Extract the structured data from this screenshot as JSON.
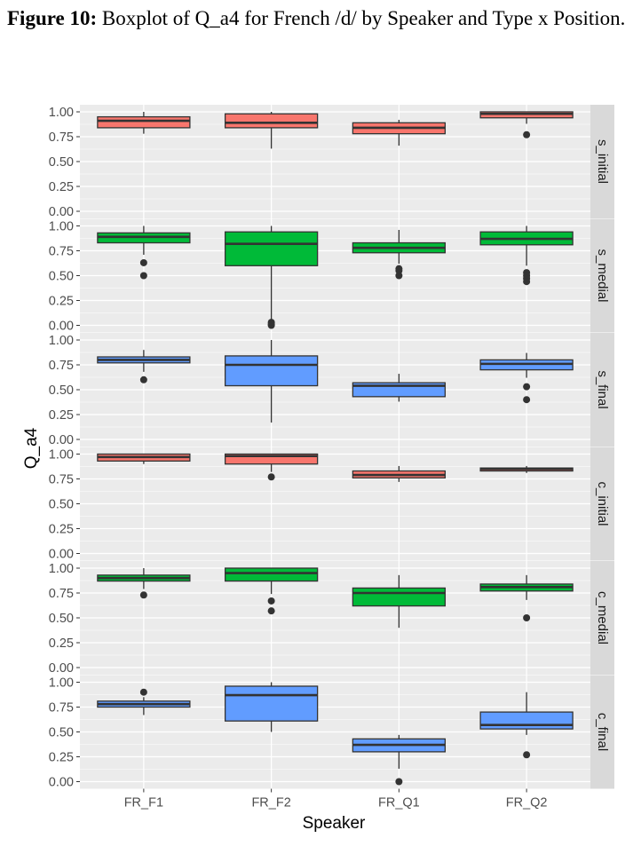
{
  "caption": {
    "label": "Figure 10:",
    "text": " Boxplot of Q_a4 for French /d/ by Speaker and Type x Position."
  },
  "colors": {
    "red": "#F8766D",
    "green": "#00BA38",
    "blue": "#619CFF",
    "panel_bg": "#EBEBEB",
    "strip_bg": "#D9D9D9",
    "grid": "#FFFFFF",
    "outline": "#333333"
  },
  "chart_data": {
    "type": "boxplot",
    "xlabel": "Speaker",
    "ylabel": "Q_a4",
    "categories": [
      "FR_F1",
      "FR_F2",
      "FR_Q1",
      "FR_Q2"
    ],
    "yticks": [
      "0.00",
      "0.25",
      "0.50",
      "0.75",
      "1.00"
    ],
    "ylim": [
      0,
      1
    ],
    "grid": true,
    "facets": [
      {
        "strip": "s_initial",
        "fill": "red",
        "boxes": [
          {
            "min": 0.78,
            "q1": 0.84,
            "median": 0.91,
            "q3": 0.95,
            "max": 1.0,
            "outliers": []
          },
          {
            "min": 0.63,
            "q1": 0.84,
            "median": 0.89,
            "q3": 0.98,
            "max": 1.0,
            "outliers": []
          },
          {
            "min": 0.66,
            "q1": 0.78,
            "median": 0.84,
            "q3": 0.89,
            "max": 0.92,
            "outliers": []
          },
          {
            "min": 0.88,
            "q1": 0.94,
            "median": 0.98,
            "q3": 1.0,
            "max": 1.0,
            "outliers": [
              0.77
            ]
          }
        ]
      },
      {
        "strip": "s_medial",
        "fill": "green",
        "boxes": [
          {
            "min": 0.71,
            "q1": 0.83,
            "median": 0.89,
            "q3": 0.93,
            "max": 1.0,
            "outliers": [
              0.63,
              0.5
            ]
          },
          {
            "min": 0.06,
            "q1": 0.6,
            "median": 0.82,
            "q3": 0.94,
            "max": 1.0,
            "outliers": [
              0.03,
              0.01,
              0.0
            ]
          },
          {
            "min": 0.62,
            "q1": 0.73,
            "median": 0.78,
            "q3": 0.83,
            "max": 0.96,
            "outliers": [
              0.57,
              0.55,
              0.5
            ]
          },
          {
            "min": 0.6,
            "q1": 0.81,
            "median": 0.87,
            "q3": 0.94,
            "max": 1.0,
            "outliers": [
              0.53,
              0.5,
              0.47,
              0.44
            ]
          }
        ]
      },
      {
        "strip": "s_final",
        "fill": "blue",
        "boxes": [
          {
            "min": 0.68,
            "q1": 0.77,
            "median": 0.8,
            "q3": 0.83,
            "max": 0.9,
            "outliers": [
              0.6
            ]
          },
          {
            "min": 0.17,
            "q1": 0.54,
            "median": 0.75,
            "q3": 0.84,
            "max": 1.0,
            "outliers": []
          },
          {
            "min": 0.38,
            "q1": 0.43,
            "median": 0.54,
            "q3": 0.57,
            "max": 0.66,
            "outliers": []
          },
          {
            "min": 0.62,
            "q1": 0.7,
            "median": 0.76,
            "q3": 0.8,
            "max": 0.87,
            "outliers": [
              0.53,
              0.4
            ]
          }
        ]
      },
      {
        "strip": "c_initial",
        "fill": "red",
        "boxes": [
          {
            "min": 0.9,
            "q1": 0.93,
            "median": 0.97,
            "q3": 1.0,
            "max": 1.0,
            "outliers": []
          },
          {
            "min": 0.82,
            "q1": 0.9,
            "median": 0.98,
            "q3": 1.0,
            "max": 1.0,
            "outliers": [
              0.77
            ]
          },
          {
            "min": 0.72,
            "q1": 0.76,
            "median": 0.79,
            "q3": 0.83,
            "max": 0.88,
            "outliers": []
          },
          {
            "min": 0.81,
            "q1": 0.83,
            "median": 0.85,
            "q3": 0.86,
            "max": 0.88,
            "outliers": []
          }
        ]
      },
      {
        "strip": "c_medial",
        "fill": "green",
        "boxes": [
          {
            "min": 0.79,
            "q1": 0.87,
            "median": 0.9,
            "q3": 0.93,
            "max": 1.0,
            "outliers": [
              0.73
            ]
          },
          {
            "min": 0.74,
            "q1": 0.87,
            "median": 0.95,
            "q3": 1.0,
            "max": 1.0,
            "outliers": [
              0.67,
              0.57
            ]
          },
          {
            "min": 0.4,
            "q1": 0.62,
            "median": 0.75,
            "q3": 0.8,
            "max": 0.93,
            "outliers": []
          },
          {
            "min": 0.68,
            "q1": 0.77,
            "median": 0.81,
            "q3": 0.84,
            "max": 0.93,
            "outliers": [
              0.5
            ]
          }
        ]
      },
      {
        "strip": "c_final",
        "fill": "blue",
        "boxes": [
          {
            "min": 0.67,
            "q1": 0.75,
            "median": 0.78,
            "q3": 0.81,
            "max": 0.85,
            "outliers": [
              0.9
            ]
          },
          {
            "min": 0.5,
            "q1": 0.61,
            "median": 0.87,
            "q3": 0.96,
            "max": 1.0,
            "outliers": []
          },
          {
            "min": 0.13,
            "q1": 0.3,
            "median": 0.37,
            "q3": 0.43,
            "max": 0.47,
            "outliers": [
              0.0
            ]
          },
          {
            "min": 0.47,
            "q1": 0.53,
            "median": 0.57,
            "q3": 0.7,
            "max": 0.9,
            "outliers": [
              0.27
            ]
          }
        ]
      }
    ]
  }
}
